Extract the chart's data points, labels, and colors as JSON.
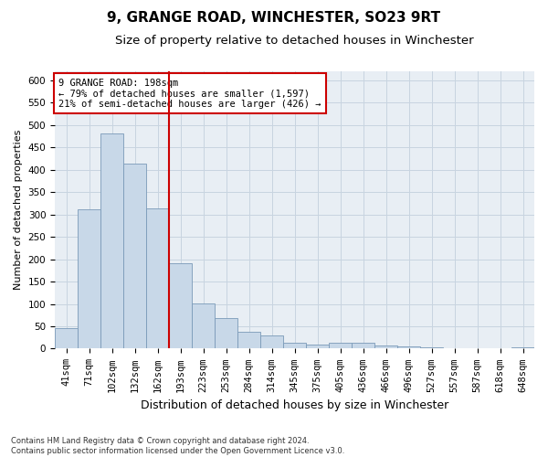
{
  "title": "9, GRANGE ROAD, WINCHESTER, SO23 9RT",
  "subtitle": "Size of property relative to detached houses in Winchester",
  "xlabel": "Distribution of detached houses by size in Winchester",
  "ylabel": "Number of detached properties",
  "categories": [
    "41sqm",
    "71sqm",
    "102sqm",
    "132sqm",
    "162sqm",
    "193sqm",
    "223sqm",
    "253sqm",
    "284sqm",
    "314sqm",
    "345sqm",
    "375sqm",
    "405sqm",
    "436sqm",
    "466sqm",
    "496sqm",
    "527sqm",
    "557sqm",
    "587sqm",
    "618sqm",
    "648sqm"
  ],
  "values": [
    45,
    311,
    481,
    414,
    314,
    190,
    102,
    68,
    37,
    30,
    13,
    10,
    13,
    13,
    8,
    5,
    3,
    1,
    0,
    0,
    3
  ],
  "bar_color": "#c8d8e8",
  "bar_edge_color": "#7a9ab8",
  "vline_x": 4.5,
  "vline_color": "#cc0000",
  "annotation_text": "9 GRANGE ROAD: 198sqm\n← 79% of detached houses are smaller (1,597)\n21% of semi-detached houses are larger (426) →",
  "annotation_box_color": "#ffffff",
  "annotation_box_edge": "#cc0000",
  "ylim": [
    0,
    620
  ],
  "yticks": [
    0,
    50,
    100,
    150,
    200,
    250,
    300,
    350,
    400,
    450,
    500,
    550,
    600
  ],
  "grid_color": "#c8d4e0",
  "bg_color": "#e8eef4",
  "footnote": "Contains HM Land Registry data © Crown copyright and database right 2024.\nContains public sector information licensed under the Open Government Licence v3.0.",
  "title_fontsize": 11,
  "subtitle_fontsize": 9.5,
  "xlabel_fontsize": 9,
  "ylabel_fontsize": 8,
  "tick_fontsize": 7.5,
  "footnote_fontsize": 6,
  "ann_fontsize": 7.5
}
